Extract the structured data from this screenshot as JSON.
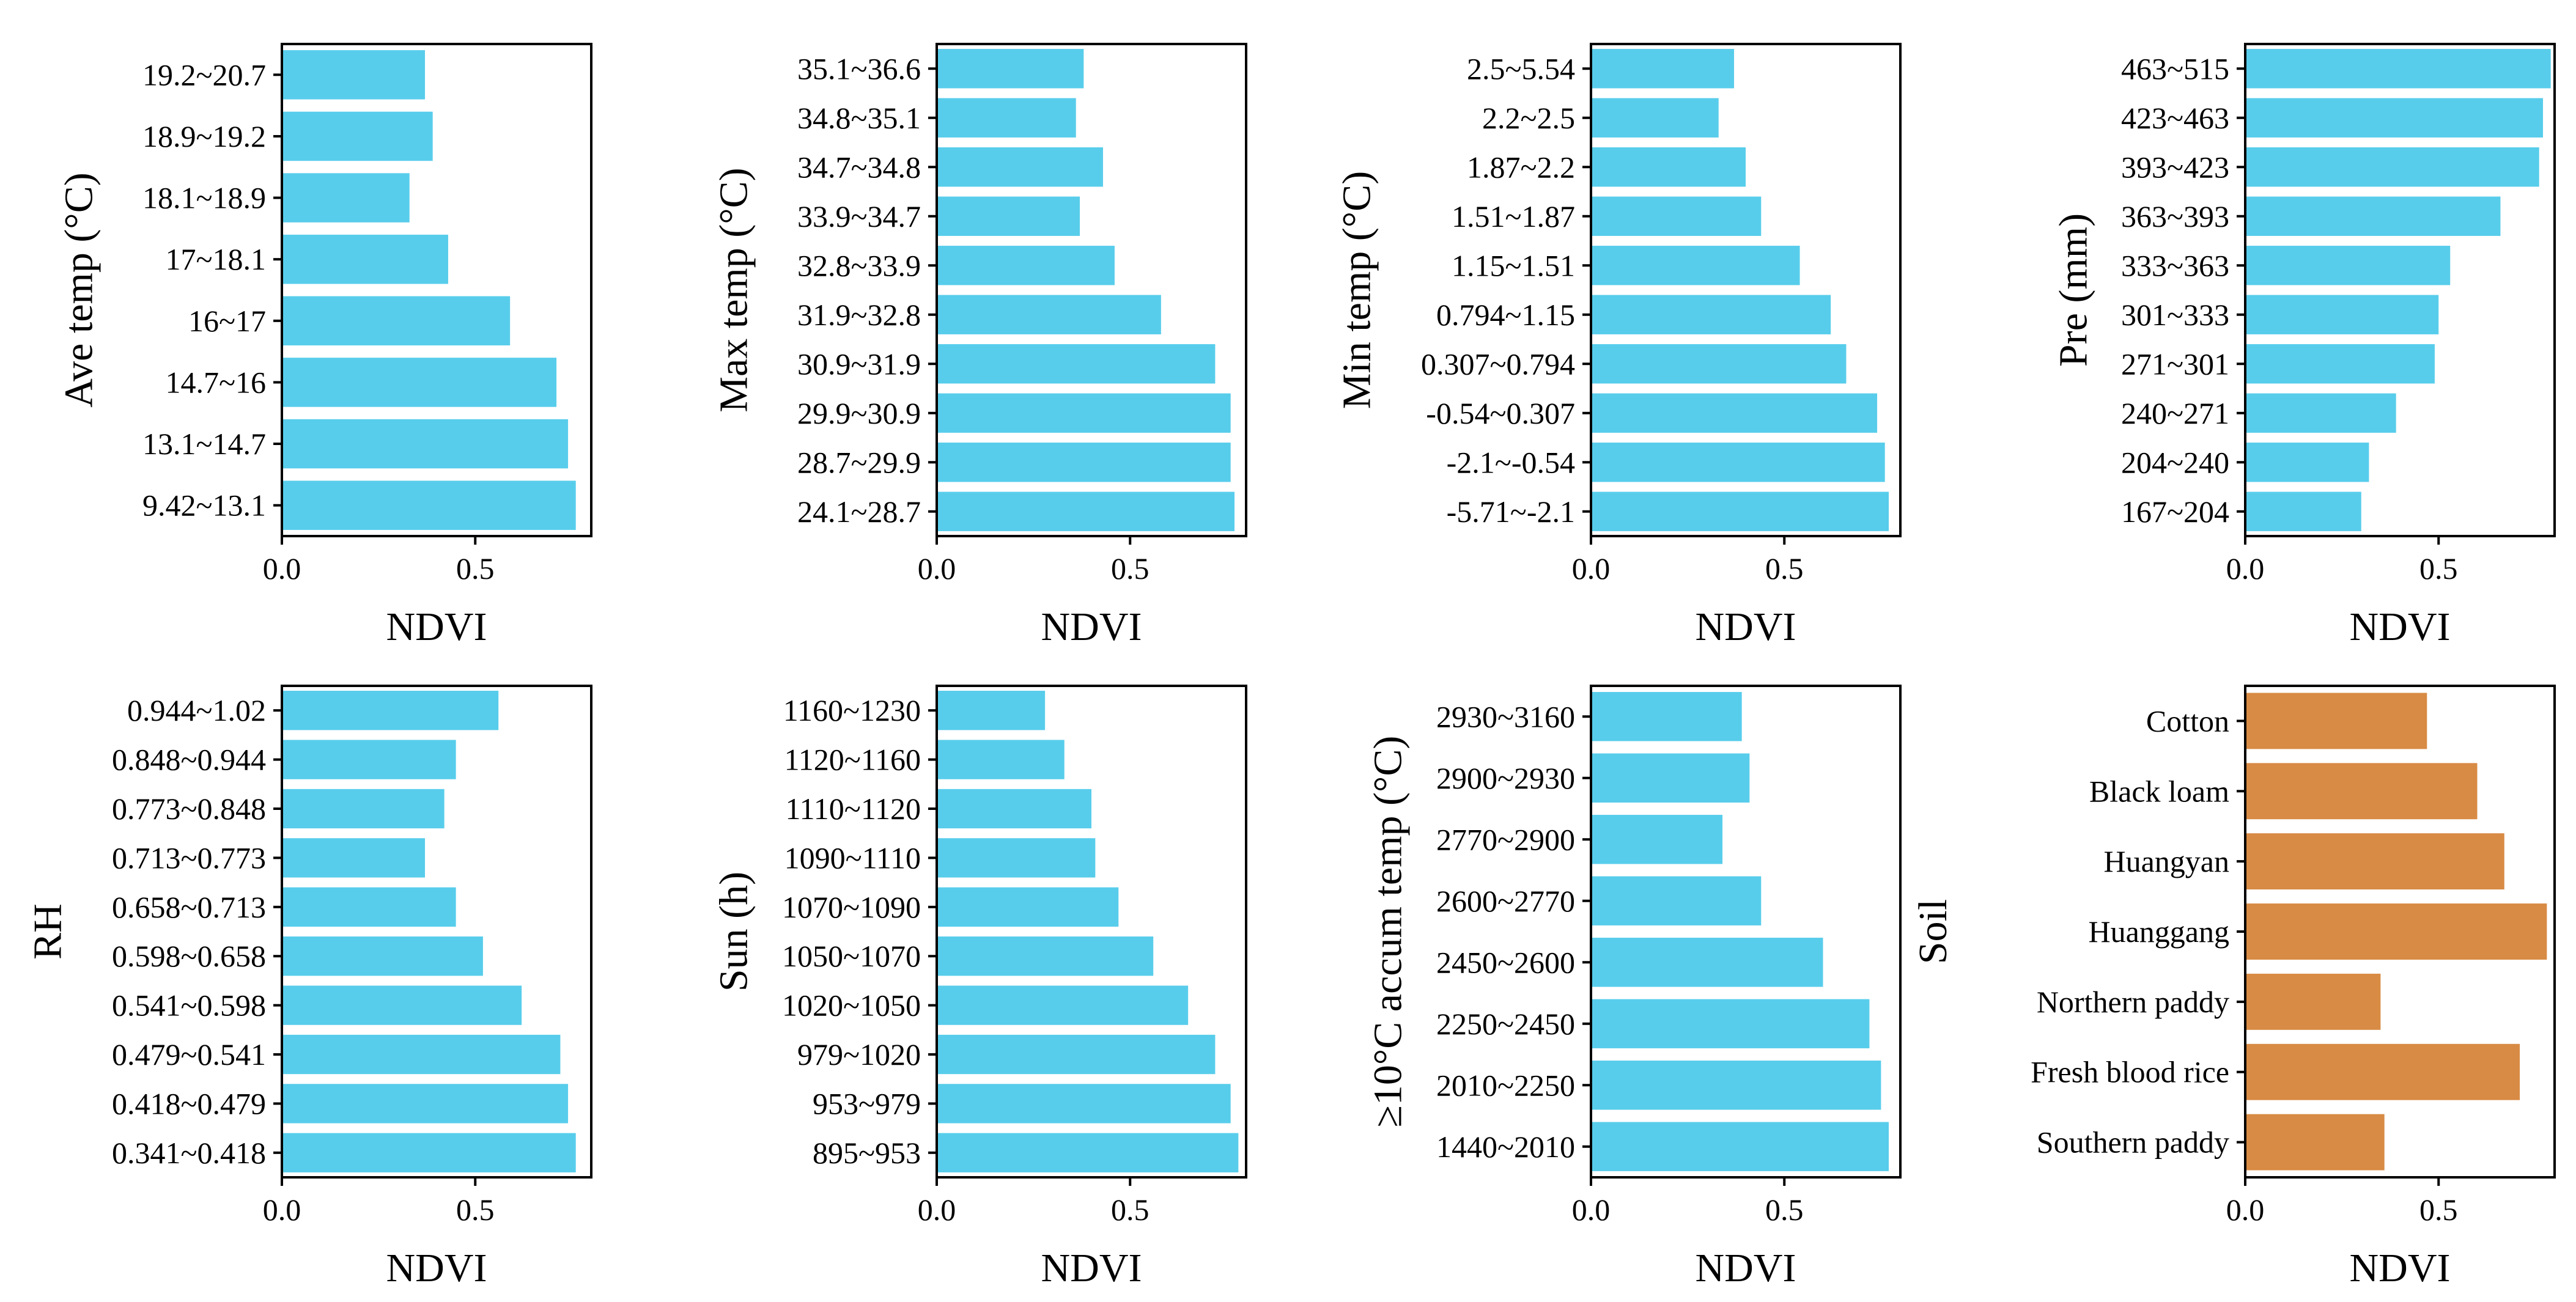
{
  "chart_data": [
    {
      "type": "bar",
      "orientation": "horizontal",
      "ylabel": "Ave temp (°C)",
      "xlabel": "NDVI",
      "xlim": [
        0,
        0.8
      ],
      "xticks": [
        "0.0",
        "0.5"
      ],
      "categories": [
        "9.42~13.1",
        "13.1~14.7",
        "14.7~16",
        "16~17",
        "17~18.1",
        "18.1~18.9",
        "18.9~19.2",
        "19.2~20.7"
      ],
      "values": [
        0.76,
        0.74,
        0.71,
        0.59,
        0.43,
        0.33,
        0.39,
        0.37
      ],
      "bar_color": "#58cdeb"
    },
    {
      "type": "bar",
      "orientation": "horizontal",
      "ylabel": "Max temp (°C)",
      "xlabel": "NDVI",
      "xlim": [
        0,
        0.8
      ],
      "xticks": [
        "0.0",
        "0.5"
      ],
      "categories": [
        "24.1~28.7",
        "28.7~29.9",
        "29.9~30.9",
        "30.9~31.9",
        "31.9~32.8",
        "32.8~33.9",
        "33.9~34.7",
        "34.7~34.8",
        "34.8~35.1",
        "35.1~36.6"
      ],
      "values": [
        0.77,
        0.76,
        0.76,
        0.72,
        0.58,
        0.46,
        0.37,
        0.43,
        0.36,
        0.38
      ],
      "bar_color": "#58cdeb"
    },
    {
      "type": "bar",
      "orientation": "horizontal",
      "ylabel": "Min temp (°C)",
      "xlabel": "NDVI",
      "xlim": [
        0,
        0.8
      ],
      "xticks": [
        "0.0",
        "0.5"
      ],
      "categories": [
        "-5.71~-2.1",
        "-2.1~-0.54",
        "-0.54~0.307",
        "0.307~0.794",
        "0.794~1.15",
        "1.15~1.51",
        "1.51~1.87",
        "1.87~2.2",
        "2.2~2.5",
        "2.5~5.54"
      ],
      "values": [
        0.77,
        0.76,
        0.74,
        0.66,
        0.62,
        0.54,
        0.44,
        0.4,
        0.33,
        0.37
      ],
      "bar_color": "#58cdeb"
    },
    {
      "type": "bar",
      "orientation": "horizontal",
      "ylabel": "Pre (mm)",
      "xlabel": "NDVI",
      "xlim": [
        0,
        0.8
      ],
      "xticks": [
        "0.0",
        "0.5"
      ],
      "categories": [
        "167~204",
        "204~240",
        "240~271",
        "271~301",
        "301~333",
        "333~363",
        "363~393",
        "393~423",
        "423~463",
        "463~515"
      ],
      "values": [
        0.3,
        0.32,
        0.39,
        0.49,
        0.5,
        0.53,
        0.66,
        0.76,
        0.77,
        0.79
      ],
      "bar_color": "#58cdeb"
    },
    {
      "type": "bar",
      "orientation": "horizontal",
      "ylabel": "RH",
      "xlabel": "NDVI",
      "xlim": [
        0,
        0.8
      ],
      "xticks": [
        "0.0",
        "0.5"
      ],
      "categories": [
        "0.341~0.418",
        "0.418~0.479",
        "0.479~0.541",
        "0.541~0.598",
        "0.598~0.658",
        "0.658~0.713",
        "0.713~0.773",
        "0.773~0.848",
        "0.848~0.944",
        "0.944~1.02"
      ],
      "values": [
        0.76,
        0.74,
        0.72,
        0.62,
        0.52,
        0.45,
        0.37,
        0.42,
        0.45,
        0.56
      ],
      "bar_color": "#58cdeb"
    },
    {
      "type": "bar",
      "orientation": "horizontal",
      "ylabel": "Sun (h)",
      "xlabel": "NDVI",
      "xlim": [
        0,
        0.8
      ],
      "xticks": [
        "0.0",
        "0.5"
      ],
      "categories": [
        "895~953",
        "953~979",
        "979~1020",
        "1020~1050",
        "1050~1070",
        "1070~1090",
        "1090~1110",
        "1110~1120",
        "1120~1160",
        "1160~1230"
      ],
      "values": [
        0.78,
        0.76,
        0.72,
        0.65,
        0.56,
        0.47,
        0.41,
        0.4,
        0.33,
        0.28
      ],
      "bar_color": "#58cdeb"
    },
    {
      "type": "bar",
      "orientation": "horizontal",
      "ylabel": "≥10°C accum temp (°C)",
      "xlabel": "NDVI",
      "xlim": [
        0,
        0.8
      ],
      "xticks": [
        "0.0",
        "0.5"
      ],
      "categories": [
        "1440~2010",
        "2010~2250",
        "2250~2450",
        "2450~2600",
        "2600~2770",
        "2770~2900",
        "2900~2930",
        "2930~3160"
      ],
      "values": [
        0.77,
        0.75,
        0.72,
        0.6,
        0.44,
        0.34,
        0.41,
        0.39
      ],
      "bar_color": "#58cdeb"
    },
    {
      "type": "bar",
      "orientation": "horizontal",
      "ylabel": "Soil",
      "xlabel": "NDVI",
      "xlim": [
        0,
        0.8
      ],
      "xticks": [
        "0.0",
        "0.5"
      ],
      "categories": [
        "Southern paddy",
        "Fresh blood rice",
        "Northern paddy",
        "Huanggang",
        "Huangyan",
        "Black loam",
        "Cotton"
      ],
      "values": [
        0.36,
        0.71,
        0.35,
        0.78,
        0.67,
        0.6,
        0.47
      ],
      "bar_color": "#d88b44"
    }
  ]
}
